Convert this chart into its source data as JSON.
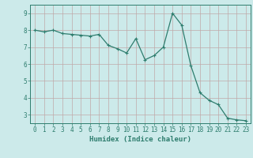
{
  "x": [
    0,
    1,
    2,
    3,
    4,
    5,
    6,
    7,
    8,
    9,
    10,
    11,
    12,
    13,
    14,
    15,
    16,
    17,
    18,
    19,
    20,
    21,
    22,
    23
  ],
  "y": [
    8.0,
    7.9,
    8.0,
    7.8,
    7.75,
    7.7,
    7.65,
    7.75,
    7.1,
    6.9,
    6.65,
    7.5,
    6.25,
    6.5,
    7.0,
    9.0,
    8.3,
    5.9,
    4.3,
    3.85,
    3.6,
    2.8,
    2.7,
    2.65
  ],
  "line_color": "#2e7d6e",
  "marker": "+",
  "marker_size": 3,
  "marker_lw": 0.8,
  "line_width": 0.9,
  "bg_color": "#cceaea",
  "grid_color": "#c0a8a8",
  "xlabel": "Humidex (Indice chaleur)",
  "xlim": [
    -0.5,
    23.5
  ],
  "ylim": [
    2.5,
    9.5
  ],
  "yticks": [
    3,
    4,
    5,
    6,
    7,
    8,
    9
  ],
  "xticks": [
    0,
    1,
    2,
    3,
    4,
    5,
    6,
    7,
    8,
    9,
    10,
    11,
    12,
    13,
    14,
    15,
    16,
    17,
    18,
    19,
    20,
    21,
    22,
    23
  ],
  "tick_color": "#2e7d6e",
  "label_fontsize": 6.5,
  "tick_fontsize": 5.5,
  "spine_color": "#2e7d6e"
}
